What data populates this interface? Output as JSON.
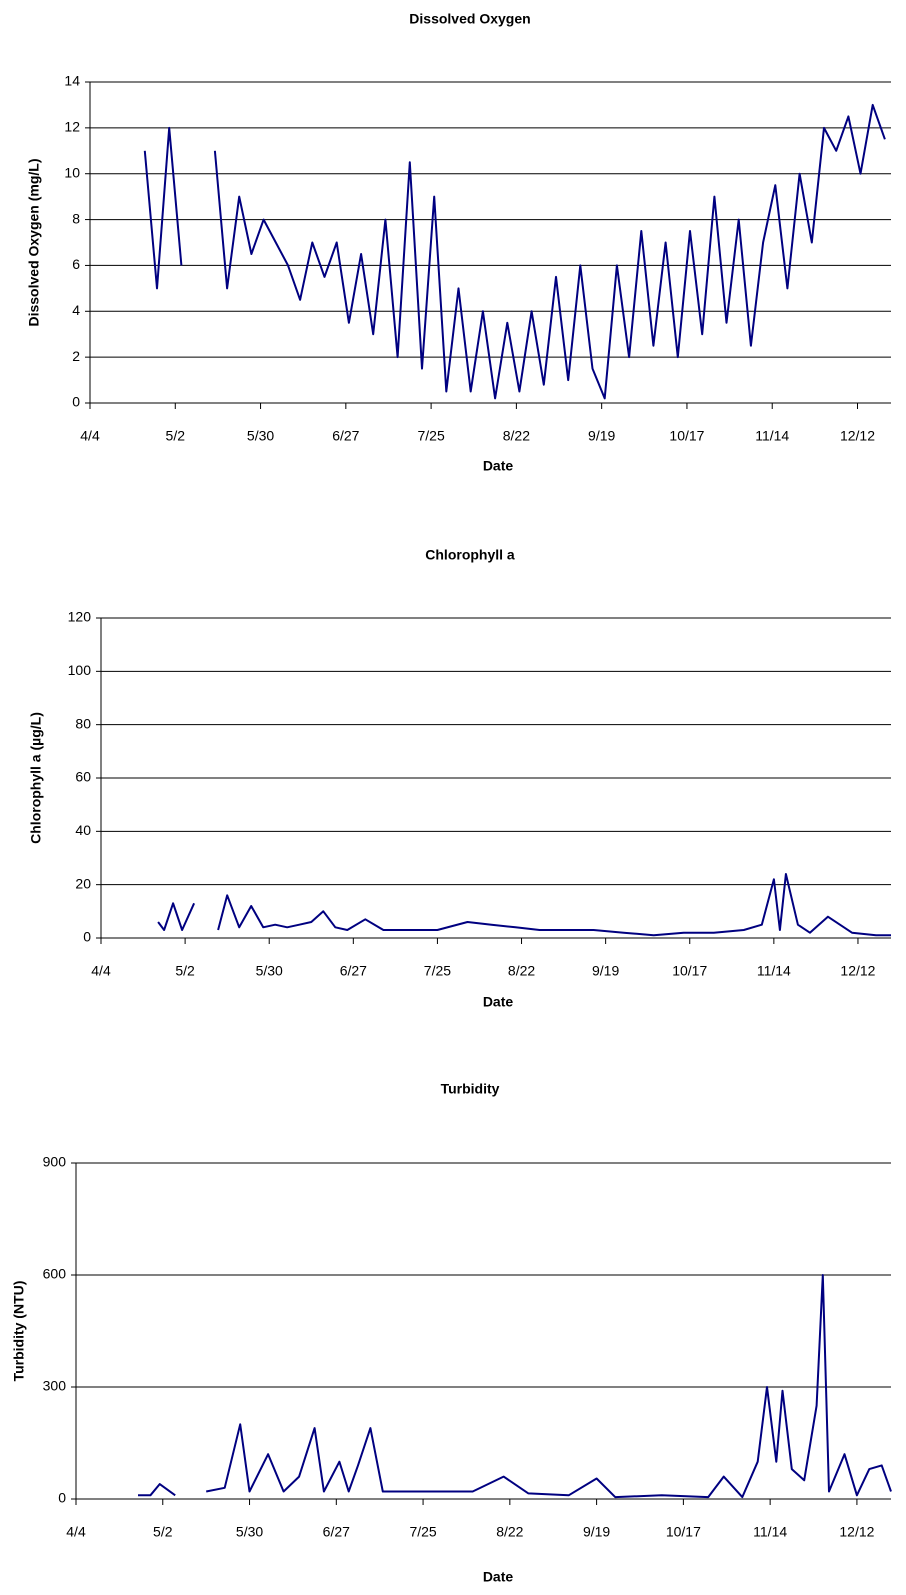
{
  "chart_data": [
    {
      "type": "line",
      "title": "Dissolved Oxygen",
      "xlabel": "Date",
      "ylabel": "Dissolved Oxygen (mg/L)",
      "color": "#000080",
      "grid": true,
      "x": [
        "4/22",
        "4/26",
        "4/30",
        "5/4",
        "5/9",
        "5/15",
        "5/19",
        "5/23",
        "5/27",
        "5/31",
        "6/4",
        "6/8",
        "6/12",
        "6/16",
        "6/20",
        "6/24",
        "6/28",
        "7/2",
        "7/6",
        "7/10",
        "7/14",
        "7/18",
        "7/22",
        "7/26",
        "7/30",
        "8/3",
        "8/7",
        "8/11",
        "8/15",
        "8/19",
        "8/23",
        "8/27",
        "8/31",
        "9/4",
        "9/8",
        "9/12",
        "9/16",
        "9/20",
        "9/24",
        "9/28",
        "10/2",
        "10/6",
        "10/10",
        "10/14",
        "10/18",
        "10/22",
        "10/26",
        "10/30",
        "11/3",
        "11/7",
        "11/11",
        "11/15",
        "11/19",
        "11/23",
        "11/27",
        "12/1",
        "12/5",
        "12/9",
        "12/13",
        "12/17",
        "12/21"
      ],
      "values": [
        11,
        5,
        12,
        6,
        null,
        11,
        5,
        9,
        6.5,
        8,
        7,
        6,
        4.5,
        7,
        5.5,
        7,
        3.5,
        6.5,
        3,
        8,
        2,
        10.5,
        1.5,
        9,
        0.5,
        5,
        0.5,
        4,
        0.2,
        3.5,
        0.5,
        4,
        0.8,
        5.5,
        1,
        6,
        1.5,
        0.2,
        6,
        2,
        7.5,
        2.5,
        7,
        2,
        7.5,
        3,
        9,
        3.5,
        8,
        2.5,
        7,
        9.5,
        5,
        10,
        7,
        12,
        11,
        12.5,
        10,
        13,
        11.5
      ],
      "xlim": [
        "4/4",
        "12/23"
      ],
      "xticks": [
        "4/4",
        "5/2",
        "5/30",
        "6/27",
        "7/25",
        "8/22",
        "9/19",
        "10/17",
        "11/14",
        "12/12"
      ],
      "ylim": [
        0,
        14
      ],
      "yticks": [
        0,
        2,
        4,
        6,
        8,
        10,
        12,
        14
      ]
    },
    {
      "type": "line",
      "title": "Chlorophyll a",
      "xlabel": "Date",
      "ylabel": "Chlorophyll a (µg/L)",
      "color": "#000080",
      "grid": true,
      "x": [
        "4/23",
        "4/25",
        "4/28",
        "5/1",
        "5/5",
        "5/9",
        "5/13",
        "5/16",
        "5/20",
        "5/24",
        "5/28",
        "6/1",
        "6/5",
        "6/9",
        "6/13",
        "6/17",
        "6/21",
        "6/25",
        "7/1",
        "7/7",
        "7/15",
        "7/25",
        "8/4",
        "8/12",
        "8/20",
        "8/28",
        "9/5",
        "9/15",
        "9/25",
        "10/5",
        "10/15",
        "10/25",
        "11/4",
        "11/10",
        "11/14",
        "11/16",
        "11/18",
        "11/22",
        "11/26",
        "12/2",
        "12/10",
        "12/18",
        "12/23"
      ],
      "values": [
        6,
        3,
        13,
        3,
        13,
        null,
        3,
        16,
        4,
        12,
        4,
        5,
        4,
        5,
        6,
        10,
        4,
        3,
        7,
        3,
        3,
        3,
        6,
        5,
        4,
        3,
        3,
        3,
        2,
        1,
        2,
        2,
        3,
        5,
        22,
        3,
        24,
        5,
        2,
        8,
        2,
        1,
        1
      ],
      "xlim": [
        "4/4",
        "12/23"
      ],
      "xticks": [
        "4/4",
        "5/2",
        "5/30",
        "6/27",
        "7/25",
        "8/22",
        "9/19",
        "10/17",
        "11/14",
        "12/12"
      ],
      "ylim": [
        0,
        120
      ],
      "yticks": [
        0,
        20,
        40,
        60,
        80,
        100,
        120
      ]
    },
    {
      "type": "line",
      "title": "Turbidity",
      "xlabel": "Date",
      "ylabel": "Turbidity (NTU)",
      "color": "#000080",
      "grid": true,
      "x": [
        "4/24",
        "4/28",
        "5/1",
        "5/6",
        "5/10",
        "5/16",
        "5/22",
        "5/27",
        "5/30",
        "6/5",
        "6/10",
        "6/15",
        "6/20",
        "6/23",
        "6/28",
        "7/1",
        "7/4",
        "7/8",
        "7/12",
        "7/25",
        "8/10",
        "8/20",
        "8/28",
        "9/10",
        "9/19",
        "9/25",
        "10/10",
        "10/25",
        "10/30",
        "11/5",
        "11/10",
        "11/13",
        "11/16",
        "11/18",
        "11/21",
        "11/25",
        "11/29",
        "12/1",
        "12/3",
        "12/8",
        "12/12",
        "12/16",
        "12/20",
        "12/23"
      ],
      "values": [
        10,
        10,
        40,
        10,
        null,
        20,
        30,
        200,
        20,
        120,
        20,
        60,
        190,
        20,
        100,
        20,
        90,
        190,
        20,
        20,
        20,
        60,
        15,
        10,
        55,
        5,
        10,
        5,
        60,
        5,
        100,
        300,
        100,
        290,
        80,
        50,
        250,
        600,
        20,
        120,
        10,
        80,
        90,
        20
      ],
      "xlim": [
        "4/4",
        "12/23"
      ],
      "xticks": [
        "4/4",
        "5/2",
        "5/30",
        "6/27",
        "7/25",
        "8/22",
        "9/19",
        "10/17",
        "11/14",
        "12/12"
      ],
      "ylim": [
        0,
        900
      ],
      "yticks": [
        0,
        300,
        600,
        900
      ]
    }
  ]
}
